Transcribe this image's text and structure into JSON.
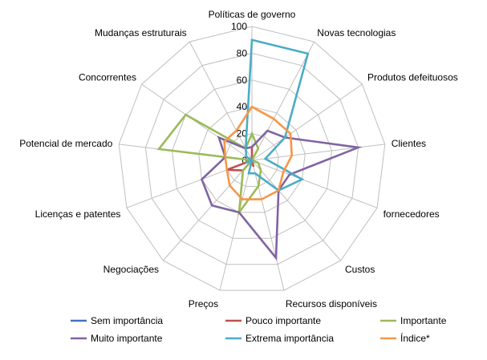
{
  "chart_data": {
    "type": "radar",
    "categories": [
      "Políticas de governo",
      "Novas tecnologias",
      "Produtos defeituosos",
      "Clientes",
      "fornecedores",
      "Custos",
      "Recursos disponíveis",
      "Preços",
      "Negociações",
      "Licenças e patentes",
      "Potencial de mercado",
      "Concorrentes",
      "Mudanças estruturais"
    ],
    "rlim": [
      0,
      100
    ],
    "ticks": [
      0,
      20,
      40,
      60,
      80,
      100
    ],
    "grid": true,
    "legend_position": "bottom",
    "series": [
      {
        "name": "Sem importância",
        "color": "#4472C4",
        "values": [
          0,
          0,
          0,
          0,
          0,
          0,
          0,
          0,
          0,
          0,
          0,
          0,
          0
        ]
      },
      {
        "name": "Pouco importante",
        "color": "#C0504D",
        "values": [
          10,
          0,
          0,
          0,
          0,
          0,
          5,
          0,
          10,
          20,
          0,
          0,
          0
        ]
      },
      {
        "name": "Importante",
        "color": "#9BBB59",
        "values": [
          20,
          10,
          0,
          0,
          5,
          10,
          20,
          40,
          10,
          0,
          70,
          60,
          10
        ]
      },
      {
        "name": "Muito importante",
        "color": "#8064A2",
        "values": [
          10,
          25,
          30,
          80,
          30,
          30,
          75,
          40,
          45,
          40,
          20,
          30,
          10
        ]
      },
      {
        "name": "Extrema importância",
        "color": "#4BACC6",
        "values": [
          90,
          90,
          30,
          10,
          40,
          30,
          10,
          10,
          0,
          5,
          0,
          5,
          10
        ]
      },
      {
        "name": "Índice*",
        "color": "#F79646",
        "values": [
          40,
          35,
          35,
          30,
          25,
          30,
          30,
          30,
          25,
          20,
          20,
          25,
          25
        ]
      }
    ]
  }
}
